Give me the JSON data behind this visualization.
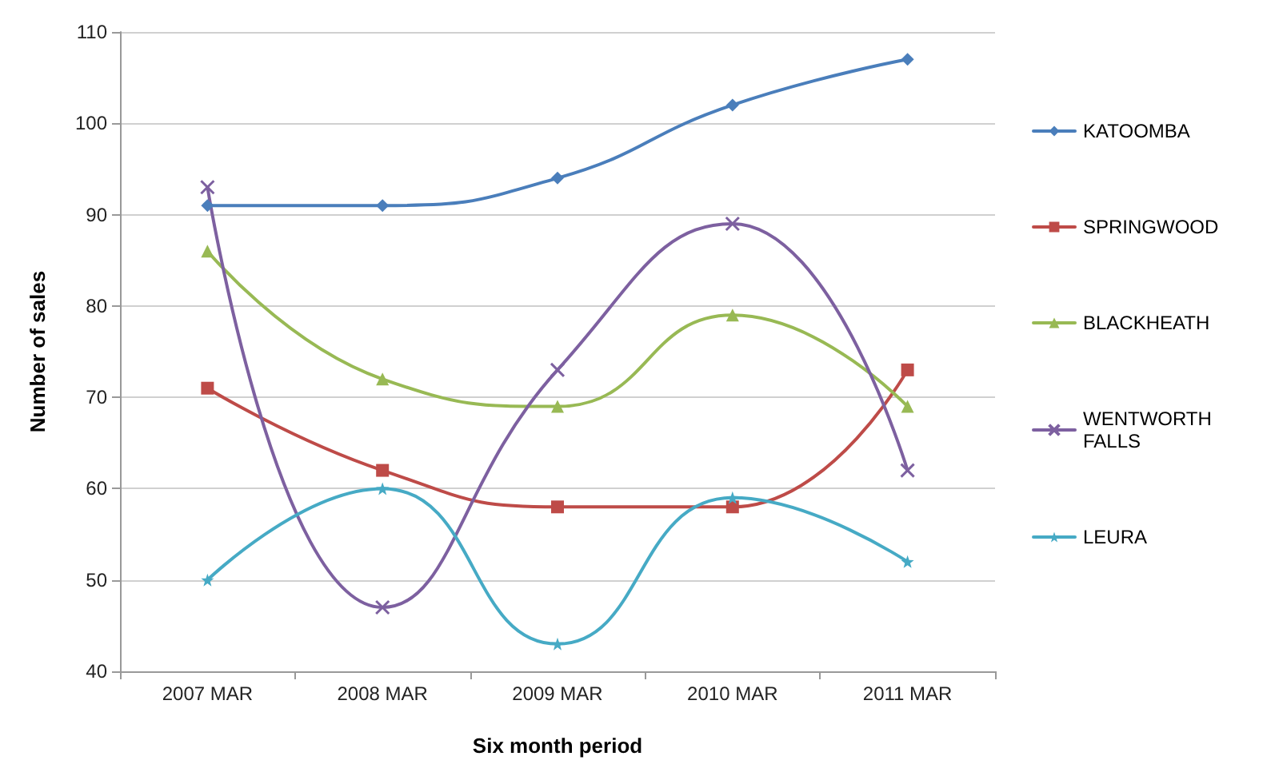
{
  "chart_data": {
    "type": "line",
    "xlabel": "Six month period",
    "ylabel": "Number of sales",
    "categories": [
      "2007 MAR",
      "2008 MAR",
      "2009 MAR",
      "2010 MAR",
      "2011 MAR"
    ],
    "series": [
      {
        "name": "KATOOMBA",
        "color": "#4a7ebb",
        "marker": "diamond",
        "values": [
          91,
          91,
          94,
          102,
          107
        ]
      },
      {
        "name": "SPRINGWOOD",
        "color": "#be4b48",
        "marker": "square",
        "values": [
          71,
          62,
          58,
          58,
          73
        ]
      },
      {
        "name": "BLACKHEATH",
        "color": "#98b954",
        "marker": "triangle",
        "values": [
          86,
          72,
          69,
          79,
          69
        ]
      },
      {
        "name": "WENTWORTH FALLS",
        "color": "#7d60a0",
        "marker": "cross",
        "values": [
          93,
          47,
          73,
          89,
          62
        ]
      },
      {
        "name": "LEURA",
        "color": "#46aac5",
        "marker": "star",
        "values": [
          50,
          60,
          43,
          59,
          52
        ]
      }
    ],
    "ylim": [
      40,
      110
    ],
    "yticks": [
      40,
      50,
      60,
      70,
      80,
      90,
      100,
      110
    ],
    "grid": "y",
    "legend": "right",
    "line_style": "solid"
  }
}
